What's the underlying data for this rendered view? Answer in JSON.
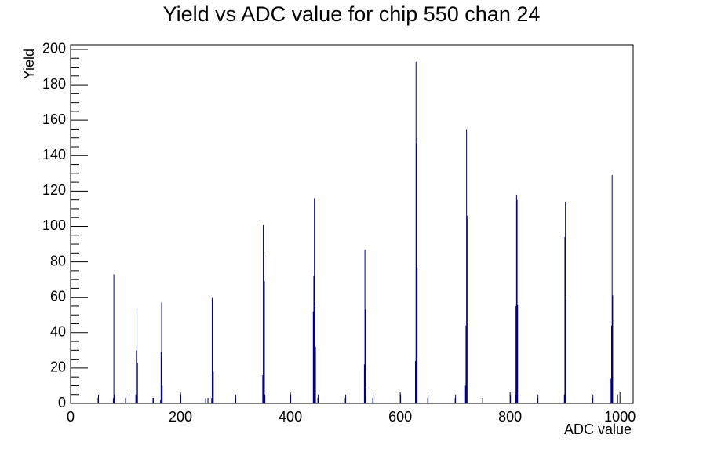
{
  "chart_data": {
    "type": "spike",
    "title": "Yield vs ADC value for chip 550 chan 24",
    "x_label": "ADC value",
    "y_label": "Yield",
    "color": "#000080",
    "x": [
      50,
      77,
      78,
      79,
      100,
      118,
      119,
      120,
      121,
      150,
      163,
      164,
      165,
      166,
      200,
      245,
      256,
      257,
      258,
      259,
      300,
      349,
      350,
      351,
      352,
      353,
      400,
      441,
      442,
      443,
      444,
      445,
      450,
      500,
      534,
      535,
      536,
      537,
      550,
      600,
      627,
      628,
      629,
      630,
      650,
      700,
      718,
      719,
      720,
      721,
      800,
      809,
      810,
      811,
      812,
      813,
      850,
      898,
      899,
      900,
      901,
      950,
      983,
      984,
      985,
      986,
      995
    ],
    "values": [
      5,
      3,
      73,
      5,
      5,
      5,
      30,
      54,
      23,
      3,
      2,
      29,
      57,
      10,
      5,
      3,
      3,
      60,
      58,
      18,
      5,
      16,
      101,
      83,
      69,
      5,
      5,
      52,
      72,
      116,
      56,
      32,
      5,
      5,
      22,
      87,
      53,
      10,
      5,
      5,
      24,
      193,
      147,
      77,
      5,
      5,
      10,
      44,
      155,
      106,
      5,
      5,
      55,
      118,
      115,
      56,
      5,
      5,
      94,
      114,
      60,
      5,
      14,
      44,
      129,
      61,
      5
    ],
    "xlim": [
      0,
      1024
    ],
    "ylim": [
      0,
      202.65
    ],
    "xticks": [
      0,
      200,
      400,
      600,
      800,
      1000
    ],
    "yticks": [
      0,
      20,
      40,
      60,
      80,
      100,
      120,
      140,
      160,
      180,
      200
    ]
  }
}
